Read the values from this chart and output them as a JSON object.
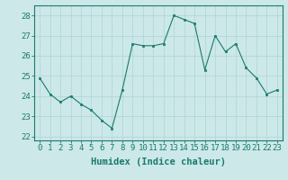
{
  "x": [
    0,
    1,
    2,
    3,
    4,
    5,
    6,
    7,
    8,
    9,
    10,
    11,
    12,
    13,
    14,
    15,
    16,
    17,
    18,
    19,
    20,
    21,
    22,
    23
  ],
  "y": [
    24.9,
    24.1,
    23.7,
    24.0,
    23.6,
    23.3,
    22.8,
    22.4,
    24.3,
    26.6,
    26.5,
    26.5,
    26.6,
    28.0,
    27.8,
    27.6,
    25.3,
    27.0,
    26.2,
    26.6,
    25.4,
    24.9,
    24.1,
    24.3
  ],
  "line_color": "#1a7a6e",
  "marker_color": "#1a7a6e",
  "bg_color": "#cce8e8",
  "grid_color": "#afd4d4",
  "xlabel": "Humidex (Indice chaleur)",
  "ylim": [
    21.8,
    28.5
  ],
  "xlim": [
    -0.5,
    23.5
  ],
  "yticks": [
    22,
    23,
    24,
    25,
    26,
    27,
    28
  ],
  "xticks": [
    0,
    1,
    2,
    3,
    4,
    5,
    6,
    7,
    8,
    9,
    10,
    11,
    12,
    13,
    14,
    15,
    16,
    17,
    18,
    19,
    20,
    21,
    22,
    23
  ],
  "tick_color": "#1a7a6e",
  "label_color": "#1a7a6e",
  "font_size_xlabel": 7.5,
  "font_size_ticks": 6.5
}
